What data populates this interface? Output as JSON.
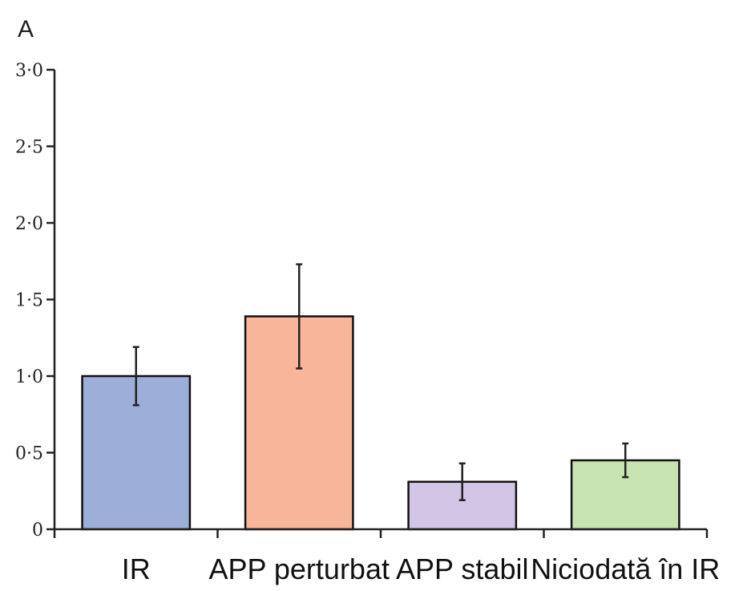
{
  "chart_data": {
    "type": "bar",
    "panel_label": "A",
    "categories": [
      "IR",
      "APP perturbat",
      "APP stabil",
      "Niciodată în IR"
    ],
    "values": [
      1.0,
      1.39,
      0.31,
      0.45
    ],
    "error_low": [
      0.81,
      1.05,
      0.19,
      0.34
    ],
    "error_high": [
      1.19,
      1.73,
      0.43,
      0.56
    ],
    "colors": [
      "#9daed8",
      "#f9b59a",
      "#d3c5e6",
      "#c8e3b2"
    ],
    "ylim": [
      0,
      3
    ],
    "yticks": [
      "0",
      "0·5",
      "1·0",
      "1·5",
      "2·0",
      "2·5",
      "3·0"
    ],
    "ytick_values": [
      0,
      0.5,
      1.0,
      1.5,
      2.0,
      2.5,
      3.0
    ],
    "grid": false,
    "legend": "none"
  }
}
